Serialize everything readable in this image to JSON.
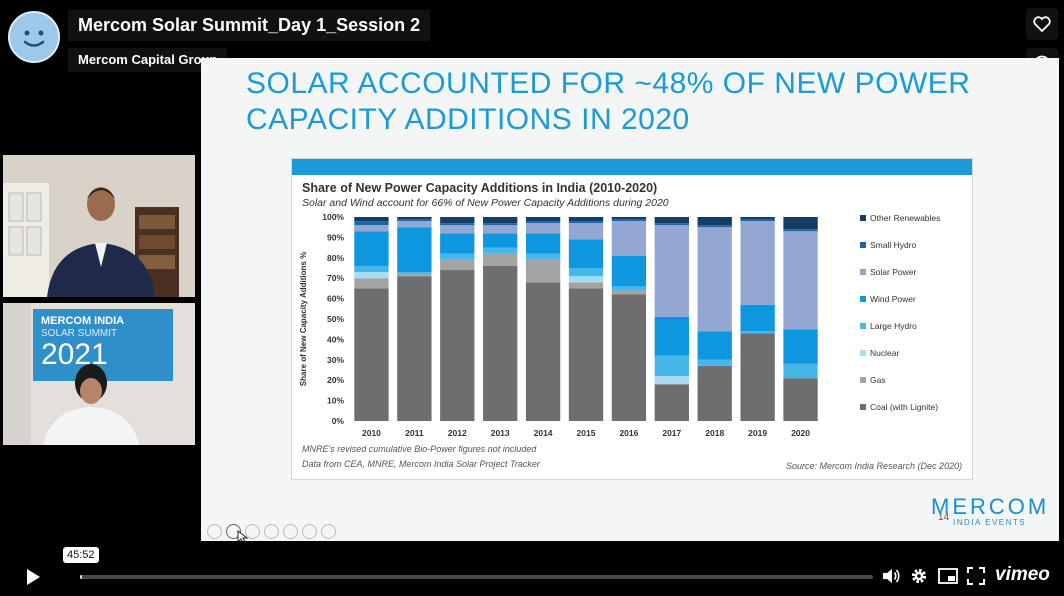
{
  "video": {
    "title": "Mercom Solar Summit_Day 1_Session 2",
    "owner": "Mercom Capital Group",
    "current_time": "45:52",
    "progress_fraction": 0.002
  },
  "webcam": {
    "banner_line1": "MERCOM INDIA",
    "banner_line2": "SOLAR SUMMIT",
    "banner_year": "2021"
  },
  "slide": {
    "title_line1": "SOLAR ACCOUNTED FOR ~48% OF NEW POWER",
    "title_line2": "CAPACITY ADDITIONS IN 2020",
    "note1": "MNRE's revised cumulative Bio-Power figures not included",
    "note2": "Data from CEA, MNRE, Mercom India Solar Project Tracker",
    "source": "Source: Mercom India Research (Dec 2020)",
    "logo": "MERCOM",
    "logo_sub": "INDIA EVENTS",
    "page_number": "14"
  },
  "brand": "vimeo",
  "colors": {
    "accent": "#1a9bd7",
    "coal": "#6e6e6e",
    "gas": "#a3a3a3",
    "nuclear": "#a8dcf3",
    "large_hydro": "#46b7ea",
    "wind": "#0e97df",
    "solar": "#93a7d2",
    "small_hydro": "#1a66aa",
    "other": "#173d66"
  },
  "chart_data": {
    "type": "bar",
    "stacked": true,
    "title": "Share of New Power Capacity Additions in India (2010-2020)",
    "subtitle": "Solar and Wind account for 66% of New Power Capacity Additions during 2020",
    "ylabel": "Share of New Capacity Additions %",
    "ylim": [
      0,
      100
    ],
    "yticks": [
      "0%",
      "10%",
      "20%",
      "30%",
      "40%",
      "50%",
      "60%",
      "70%",
      "80%",
      "90%",
      "100%"
    ],
    "categories": [
      "2010",
      "2011",
      "2012",
      "2013",
      "2014",
      "2015",
      "2016",
      "2017",
      "2018",
      "2019",
      "2020"
    ],
    "series": [
      {
        "name": "Coal (with Lignite)",
        "color": "#6e6e6e",
        "values": [
          65,
          71,
          74,
          76,
          68,
          65,
          62,
          18,
          27,
          43,
          21
        ]
      },
      {
        "name": "Gas",
        "color": "#a3a3a3",
        "values": [
          5,
          1,
          5,
          6,
          11,
          3,
          2,
          0,
          0,
          0,
          0
        ]
      },
      {
        "name": "Nuclear",
        "color": "#a8dcf3",
        "values": [
          3,
          0,
          0,
          0,
          0,
          3,
          0,
          4,
          0,
          0,
          0
        ]
      },
      {
        "name": "Large Hydro",
        "color": "#46b7ea",
        "values": [
          3,
          1,
          3,
          3,
          3,
          4,
          2,
          10,
          3,
          1,
          7
        ]
      },
      {
        "name": "Wind Power",
        "color": "#0e97df",
        "values": [
          17,
          22,
          10,
          7,
          10,
          14,
          15,
          19,
          14,
          13,
          17
        ]
      },
      {
        "name": "Solar Power",
        "color": "#93a7d2",
        "values": [
          3,
          3,
          4,
          4,
          5,
          8,
          17,
          45,
          51,
          41,
          48
        ]
      },
      {
        "name": "Small Hydro",
        "color": "#1a66aa",
        "values": [
          2,
          1,
          1,
          1,
          1,
          1,
          1,
          1,
          1,
          1,
          1
        ]
      },
      {
        "name": "Other Renewables",
        "color": "#173d66",
        "values": [
          2,
          1,
          3,
          3,
          2,
          2,
          1,
          3,
          4,
          1,
          6
        ]
      }
    ],
    "legend_order": [
      "Other Renewables",
      "Small Hydro",
      "Solar Power",
      "Wind Power",
      "Large Hydro",
      "Nuclear",
      "Gas",
      "Coal (with Lignite)"
    ],
    "legend_position": "right"
  }
}
